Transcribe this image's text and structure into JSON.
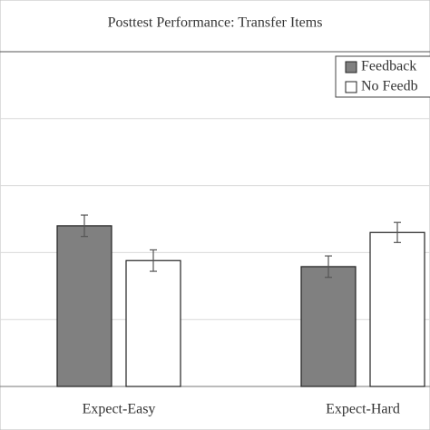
{
  "chart_data": {
    "type": "bar",
    "title": "Posttest Performance: Transfer Items",
    "categories": [
      "Expect-Easy",
      "Expect-Hard"
    ],
    "series": [
      {
        "name": "Feedback",
        "color": "#808080",
        "values": [
          2.4,
          1.79
        ],
        "errors": [
          0.16,
          0.16
        ]
      },
      {
        "name": "No Feedb",
        "color": "#ffffff",
        "values": [
          1.88,
          2.3
        ],
        "errors": [
          0.16,
          0.15
        ]
      }
    ],
    "ylim": [
      0,
      5
    ],
    "yticks": [
      0,
      1,
      2,
      3,
      4
    ],
    "grid": true,
    "legend": "top-right"
  }
}
